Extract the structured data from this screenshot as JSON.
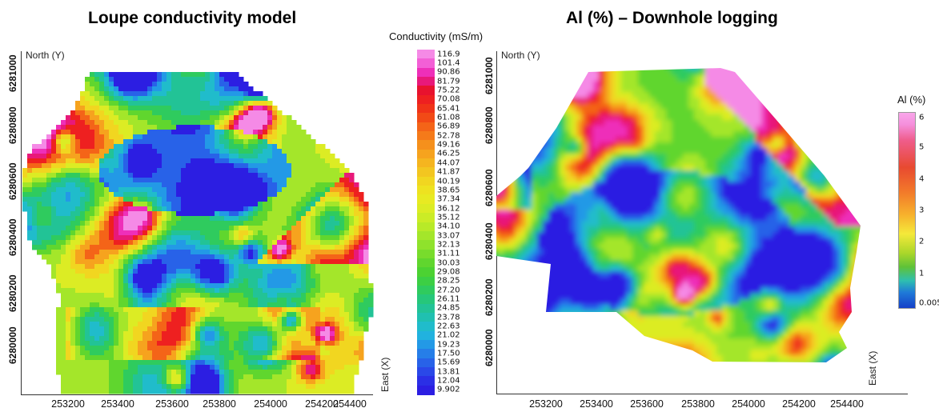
{
  "left_panel": {
    "title": "Loupe conductivity model",
    "north_label": "North (Y)",
    "east_label": "East (X)"
  },
  "right_panel": {
    "title": "Al (%) – Downhole logging",
    "north_label": "North (Y)",
    "east_label": "East (X)"
  },
  "colorbars": {
    "conductivity": {
      "label": "Conductivity (mS/m)",
      "ticks": [
        "116.9",
        "101.4",
        "90.86",
        "81.79",
        "75.22",
        "70.08",
        "65.41",
        "61.08",
        "56.89",
        "52.78",
        "49.16",
        "46.25",
        "44.07",
        "41.87",
        "40.19",
        "38.65",
        "37.34",
        "36.12",
        "35.12",
        "34.10",
        "33.07",
        "32.13",
        "31.11",
        "30.03",
        "29.08",
        "28.25",
        "27.20",
        "26.11",
        "24.85",
        "23.78",
        "22.63",
        "21.02",
        "19.23",
        "17.50",
        "15.69",
        "13.81",
        "12.04",
        "9.902"
      ],
      "colors": [
        "#f58ae6",
        "#f35fd6",
        "#ee2fb9",
        "#e8197a",
        "#e8122e",
        "#ee2020",
        "#f03318",
        "#f24a16",
        "#f46418",
        "#f57a1a",
        "#f5901c",
        "#f6a31e",
        "#f5b51f",
        "#f3c620",
        "#f1d620",
        "#eee220",
        "#e8ea22",
        "#dcec24",
        "#cbec26",
        "#b8ea28",
        "#a4e62a",
        "#8fe22c",
        "#78dc2c",
        "#60d62e",
        "#4cd232",
        "#3ccf44",
        "#2fcb5e",
        "#26c77a",
        "#22c396",
        "#20c0b0",
        "#20bccb",
        "#21b2df",
        "#2399e6",
        "#267ee8",
        "#2862e8",
        "#2a48e8",
        "#2b2fe6",
        "#2c1ee2"
      ]
    },
    "al_percent": {
      "label": "Al (%)",
      "ticks": [
        "6",
        "5",
        "4",
        "3",
        "2",
        "1",
        "0.005"
      ]
    }
  },
  "chart_data": [
    {
      "type": "heatmap",
      "title": "Loupe conductivity model",
      "ylabel": "North (Y)",
      "xlabel": "East (X)",
      "x_ticks": [
        253200,
        253400,
        253600,
        253800,
        254000,
        254200,
        254400
      ],
      "y_ticks": [
        6280000,
        6280200,
        6280400,
        6280600,
        6280800,
        6281000
      ],
      "colorbar_label": "Conductivity (mS/m)",
      "value_range": [
        9.902,
        116.9
      ]
    },
    {
      "type": "heatmap",
      "title": "Al (%) – Downhole logging",
      "ylabel": "North (Y)",
      "xlabel": "East (X)",
      "x_ticks": [
        253200,
        253400,
        253600,
        253800,
        254000,
        254200,
        254400
      ],
      "y_ticks": [
        6280000,
        6280200,
        6280400,
        6280600,
        6280800,
        6281000
      ],
      "colorbar_label": "Al (%)",
      "value_range": [
        0.005,
        6
      ]
    }
  ]
}
